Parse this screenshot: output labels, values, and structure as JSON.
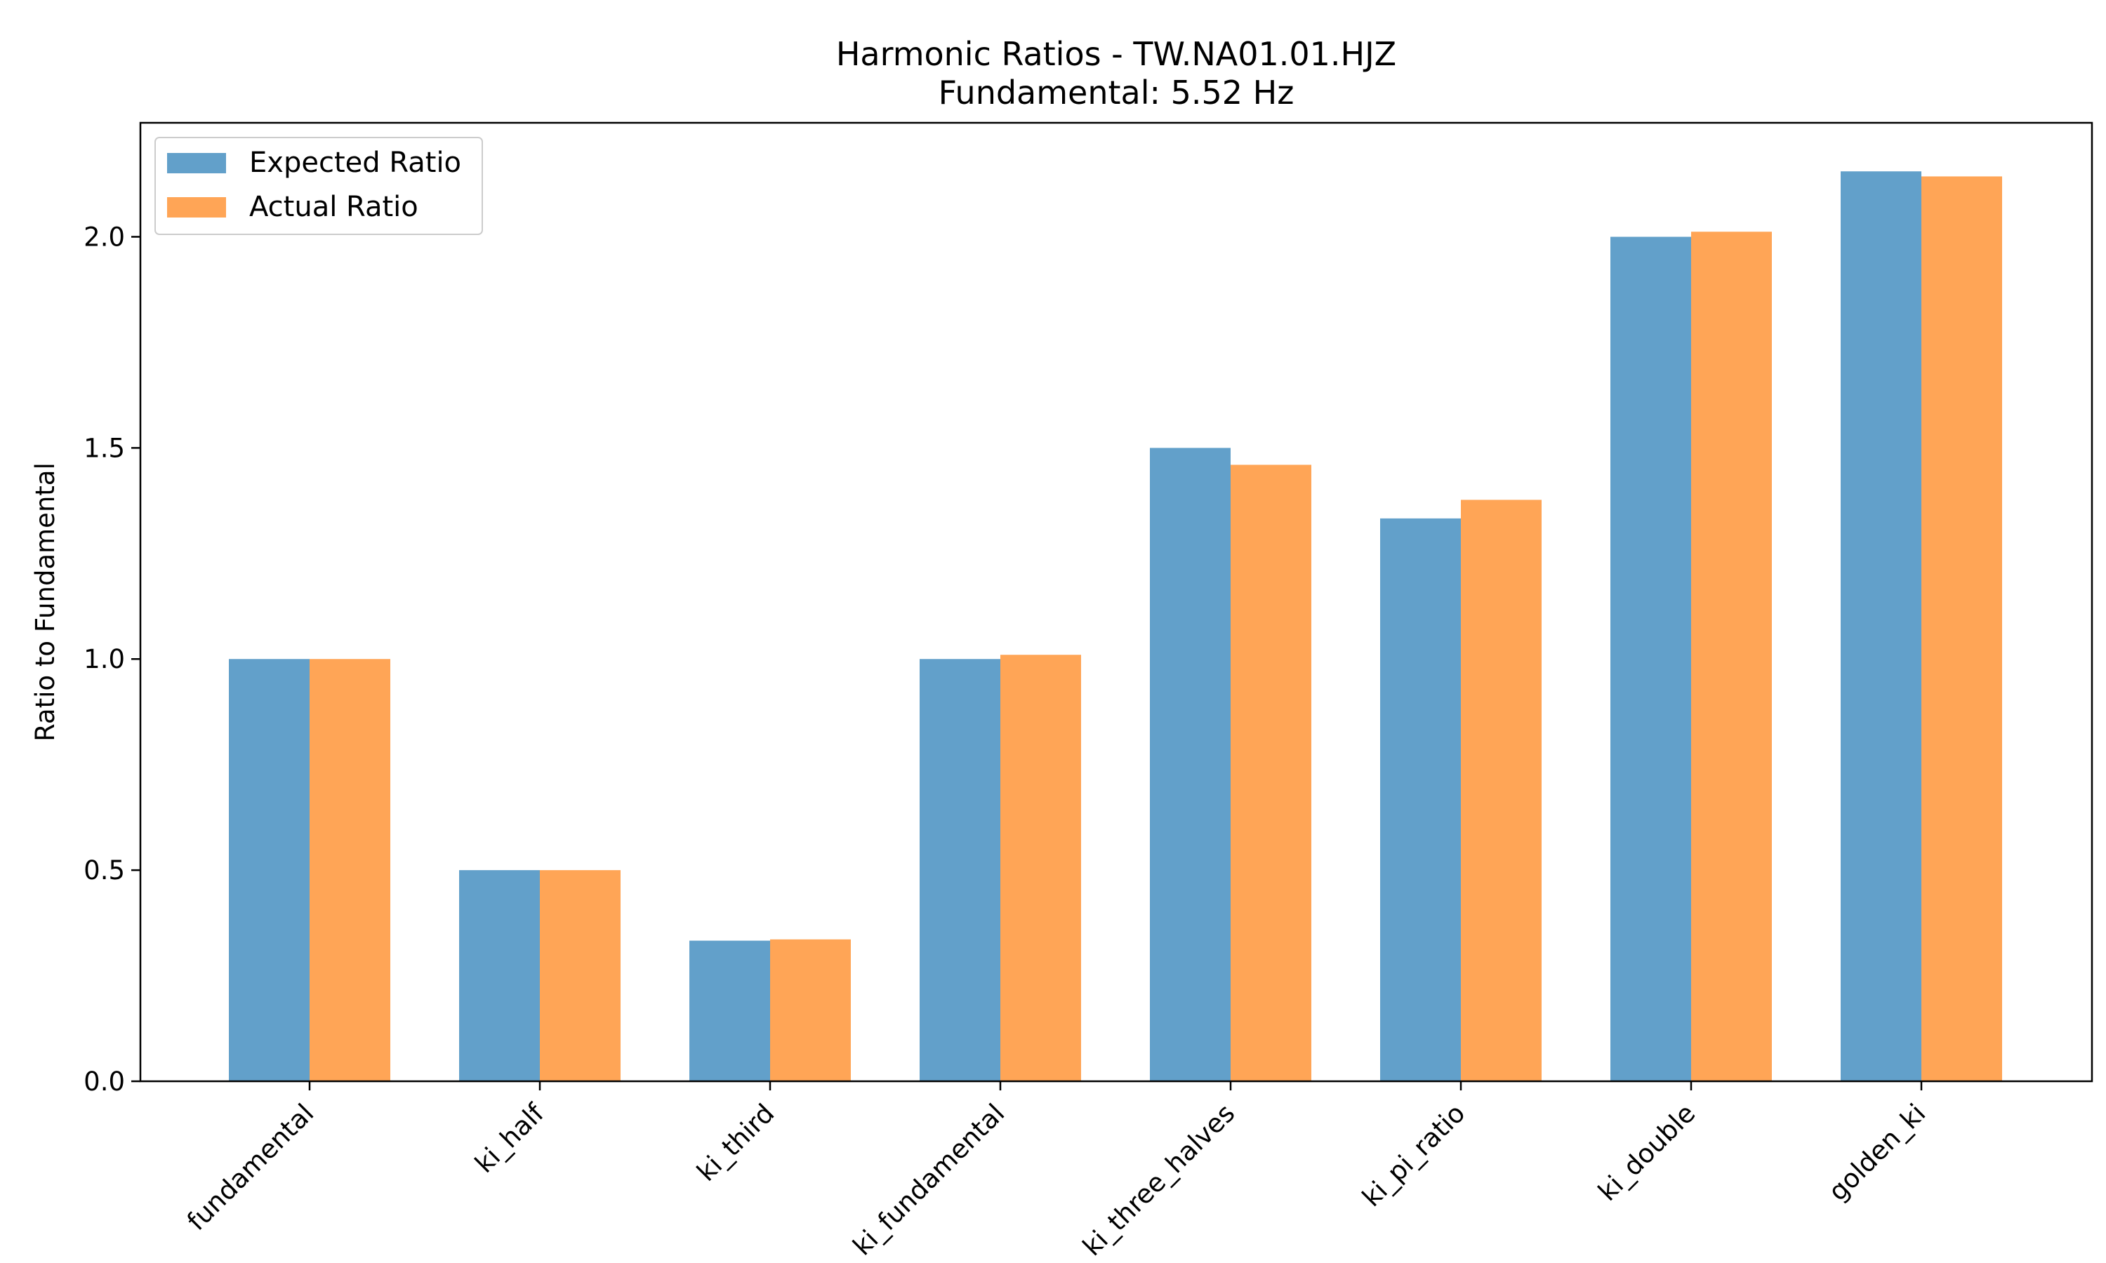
{
  "chart_data": {
    "type": "bar",
    "title": "Harmonic Ratios - TW.NA01.01.HJZ",
    "subtitle": "Fundamental: 5.52 Hz",
    "xlabel": "",
    "ylabel": "Ratio to Fundamental",
    "categories": [
      "fundamental",
      "ki_half",
      "ki_third",
      "ki_fundamental",
      "ki_three_halves",
      "ki_pi_ratio",
      "ki_double",
      "golden_ki"
    ],
    "series": [
      {
        "name": "Expected Ratio",
        "color": "#1f77b4",
        "values": [
          1.0,
          0.5,
          0.333,
          1.0,
          1.5,
          1.333,
          2.0,
          2.155
        ]
      },
      {
        "name": "Actual Ratio",
        "color": "#ff7f0e",
        "values": [
          1.0,
          0.5,
          0.336,
          1.01,
          1.46,
          1.377,
          2.012,
          2.143
        ]
      }
    ],
    "ylim": [
      0,
      2.27
    ],
    "yticks": [
      0.0,
      0.5,
      1.0,
      1.5,
      2.0
    ],
    "ytick_labels": [
      "0.0",
      "0.5",
      "1.0",
      "1.5",
      "2.0"
    ],
    "legend_position": "upper-left",
    "grid": false
  }
}
